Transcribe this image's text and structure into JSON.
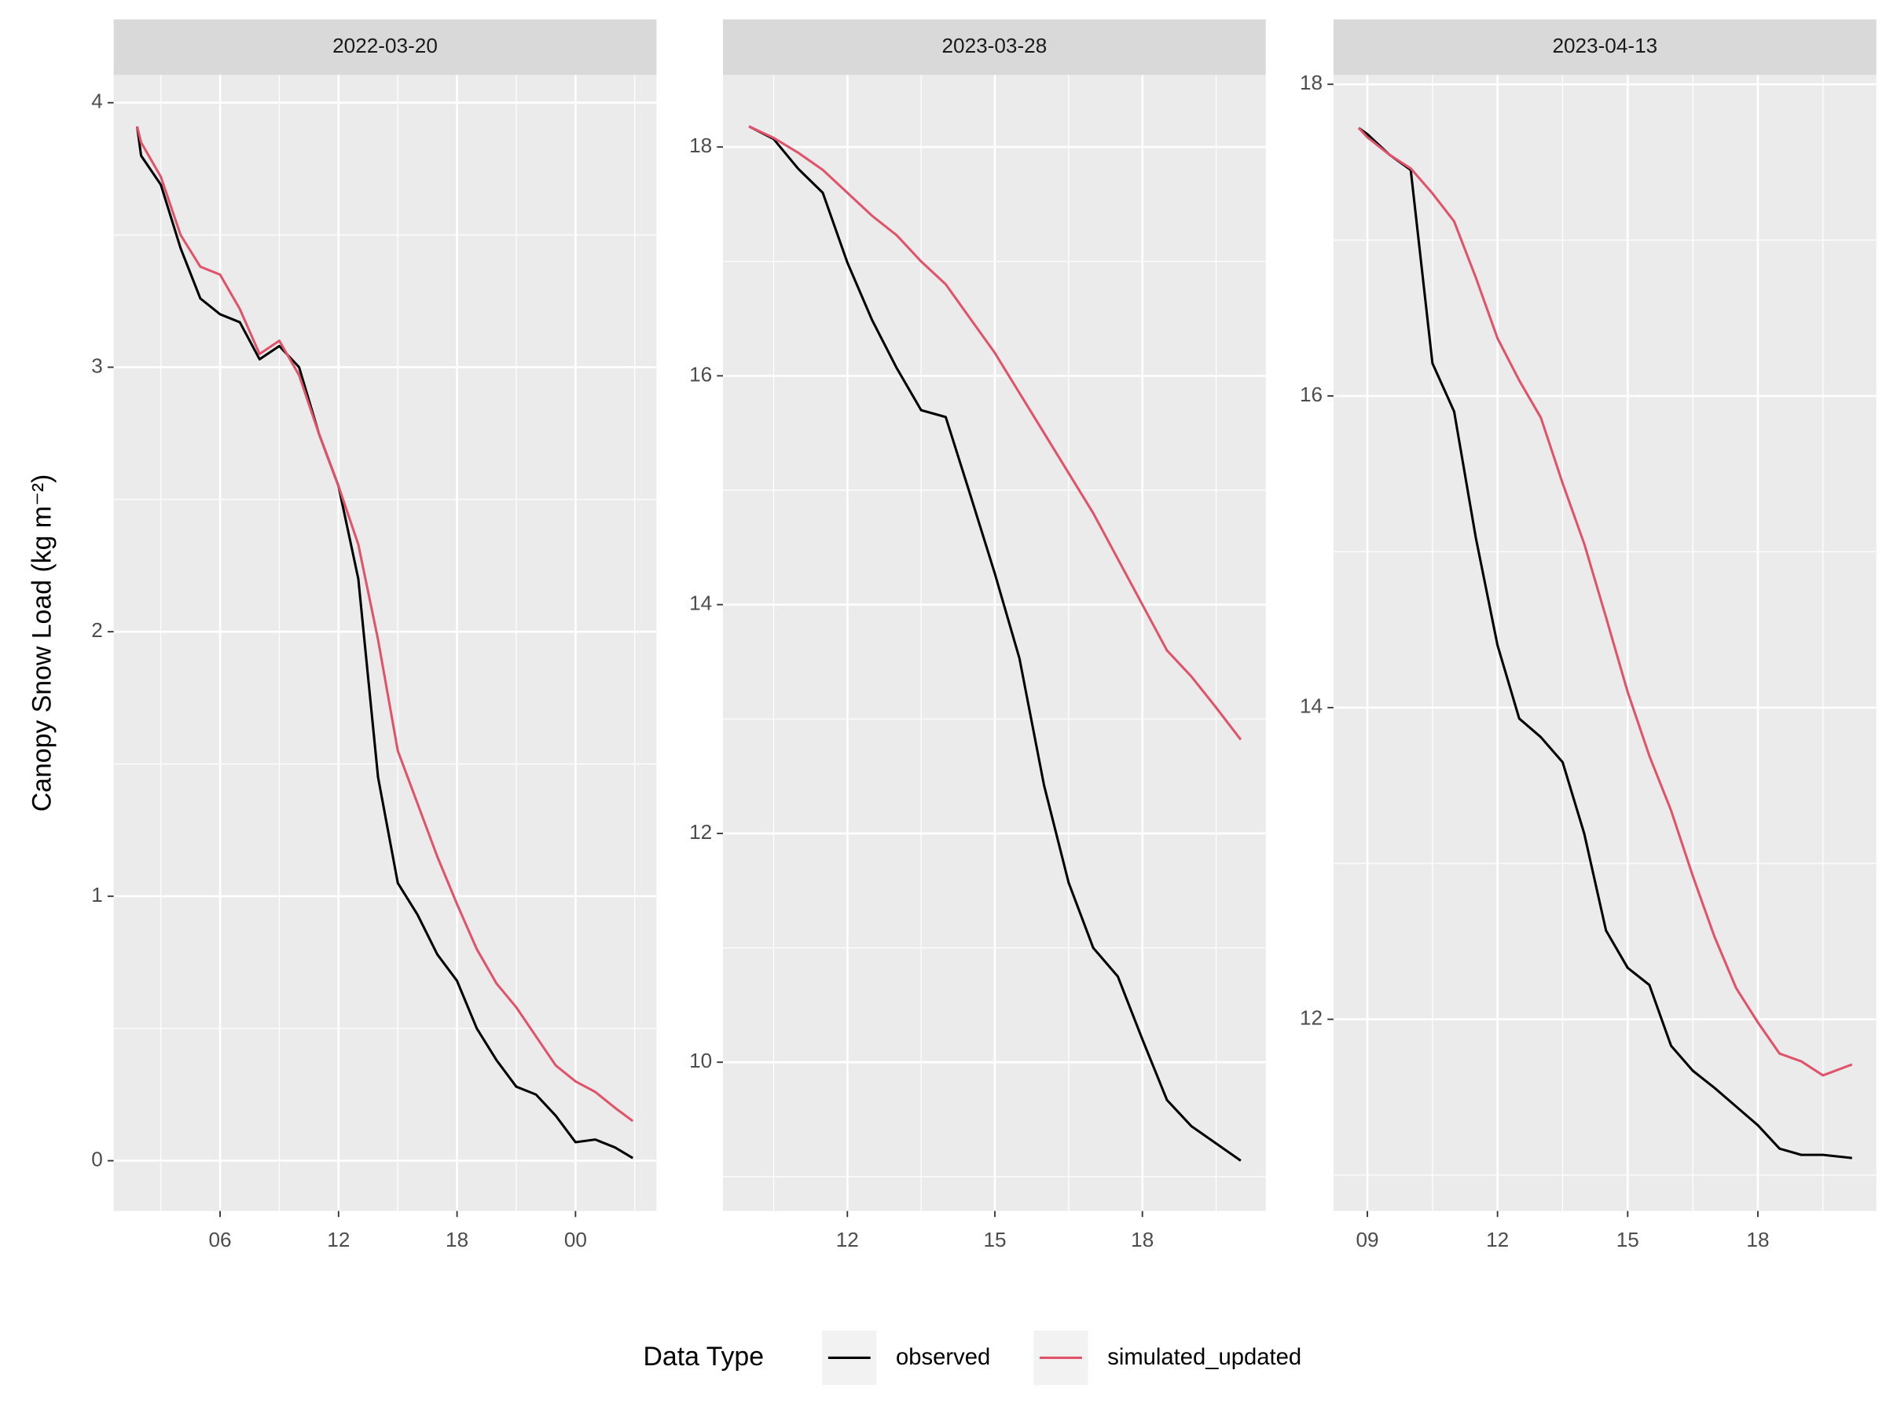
{
  "chart_data": [
    {
      "type": "line",
      "title": "2022-03-20",
      "x": [
        1.8,
        2,
        3,
        4,
        5,
        6,
        7,
        8,
        9,
        10,
        11,
        12,
        13,
        14,
        15,
        16,
        17,
        18,
        19,
        20,
        21,
        22,
        23,
        24,
        25,
        26,
        26.9
      ],
      "series": [
        {
          "name": "observed",
          "color": "#000000",
          "values": [
            3.91,
            3.8,
            3.69,
            3.45,
            3.26,
            3.2,
            3.17,
            3.03,
            3.08,
            3.0,
            2.75,
            2.55,
            2.2,
            1.45,
            1.05,
            0.93,
            0.78,
            0.68,
            0.5,
            0.38,
            0.28,
            0.25,
            0.17,
            0.07,
            0.08,
            0.05,
            0.01
          ]
        },
        {
          "name": "simulated_updated",
          "color": "#DF536B",
          "values": [
            3.91,
            3.85,
            3.72,
            3.5,
            3.38,
            3.35,
            3.22,
            3.05,
            3.1,
            2.97,
            2.75,
            2.55,
            2.33,
            1.97,
            1.55,
            1.35,
            1.15,
            0.97,
            0.8,
            0.67,
            0.58,
            0.47,
            0.36,
            0.3,
            0.26,
            0.2,
            0.15
          ]
        }
      ],
      "xlim": [
        0.61,
        28.1
      ],
      "ylim": [
        -0.19,
        4.105
      ],
      "xticks": [
        {
          "value": 6,
          "label": "06"
        },
        12,
        18,
        {
          "value": 24,
          "label": "00"
        }
      ],
      "yticks": [
        0,
        1,
        2,
        3,
        4
      ],
      "minor_xticks": [
        3,
        9,
        15,
        21,
        27
      ],
      "minor_yticks": [
        0.5,
        1.5,
        2.5,
        3.5
      ],
      "grid": true
    },
    {
      "type": "line",
      "title": "2023-03-28",
      "x": [
        10,
        10.5,
        11,
        11.5,
        12,
        12.5,
        13,
        13.5,
        14,
        14.5,
        15,
        15.5,
        16,
        16.5,
        17,
        17.5,
        18,
        18.5,
        19,
        19.5,
        20
      ],
      "series": [
        {
          "name": "observed",
          "color": "#000000",
          "values": [
            18.18,
            18.07,
            17.81,
            17.6,
            16.99,
            16.49,
            16.07,
            15.7,
            15.64,
            14.96,
            14.27,
            13.53,
            12.42,
            11.57,
            11.0,
            10.75,
            10.2,
            9.67,
            9.44,
            9.29,
            9.14
          ]
        },
        {
          "name": "simulated_updated",
          "color": "#DF536B",
          "values": [
            18.18,
            18.08,
            17.95,
            17.8,
            17.6,
            17.4,
            17.23,
            17.0,
            16.8,
            16.5,
            16.2,
            15.85,
            15.5,
            15.15,
            14.8,
            14.4,
            14.0,
            13.6,
            13.37,
            13.1,
            12.82
          ]
        }
      ],
      "xlim": [
        9.47,
        20.51
      ],
      "ylim": [
        8.7,
        18.63
      ],
      "xticks": [
        12,
        15,
        18
      ],
      "yticks": [
        10,
        12,
        14,
        16,
        18
      ],
      "minor_xticks": [
        10.5,
        13.5,
        16.5,
        19.5
      ],
      "minor_yticks": [
        9,
        11,
        13,
        15,
        17
      ],
      "grid": true
    },
    {
      "type": "line",
      "title": "2023-04-13",
      "x": [
        8.8,
        9,
        9.5,
        10,
        10.5,
        11,
        11.5,
        12,
        12.5,
        13,
        13.5,
        14,
        14.5,
        15,
        15.5,
        16,
        16.5,
        17,
        17.5,
        18,
        18.5,
        19,
        19.5,
        20.17
      ],
      "series": [
        {
          "name": "observed",
          "color": "#000000",
          "values": [
            17.72,
            17.68,
            17.55,
            17.45,
            16.21,
            15.9,
            15.09,
            14.4,
            13.93,
            13.81,
            13.65,
            13.19,
            12.57,
            12.33,
            12.22,
            11.83,
            11.67,
            11.56,
            11.44,
            11.32,
            11.17,
            11.13,
            11.13,
            11.11
          ]
        },
        {
          "name": "simulated_updated",
          "color": "#DF536B",
          "values": [
            17.72,
            17.66,
            17.55,
            17.46,
            17.3,
            17.12,
            16.76,
            16.37,
            16.1,
            15.86,
            15.44,
            15.05,
            14.58,
            14.1,
            13.69,
            13.34,
            12.92,
            12.53,
            12.2,
            11.98,
            11.78,
            11.73,
            11.64,
            11.71
          ]
        }
      ],
      "xlim": [
        8.22,
        20.73
      ],
      "ylim": [
        10.77,
        18.06
      ],
      "xticks": [
        {
          "value": 9,
          "label": "09"
        },
        12,
        15,
        18
      ],
      "yticks": [
        12,
        14,
        16,
        18
      ],
      "minor_xticks": [
        10.5,
        13.5,
        16.5,
        19.5
      ],
      "minor_yticks": [
        11,
        13,
        15,
        17
      ],
      "grid": true
    }
  ],
  "y_label": "Canopy Snow Load (kg m⁻²)",
  "legend": {
    "title": "Data Type",
    "position": "bottom"
  }
}
